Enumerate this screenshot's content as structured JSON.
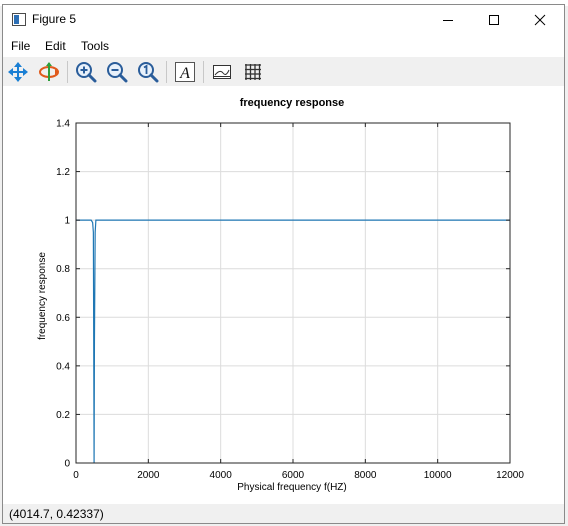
{
  "window": {
    "title": "Figure 5"
  },
  "menu": {
    "items": [
      "File",
      "Edit",
      "Tools"
    ]
  },
  "toolbar": {
    "tools": [
      "pan-icon",
      "rotate-icon",
      "zoom-in-icon",
      "zoom-out-icon",
      "zoom-reset-icon",
      "text-icon",
      "axes-icon",
      "grid-icon"
    ]
  },
  "status": {
    "coords": "(4014.7, 0.42337)"
  },
  "colors": {
    "line": "#1f77b4",
    "grid": "#dcdcdc"
  },
  "chart_data": {
    "type": "line",
    "title": "frequency response",
    "xlabel": "Physical frequency f(HZ)",
    "ylabel": "frequency response",
    "xlim": [
      0,
      12000
    ],
    "ylim": [
      0,
      1.4
    ],
    "xticks": [
      0,
      2000,
      4000,
      6000,
      8000,
      10000,
      12000
    ],
    "yticks": [
      0,
      0.2,
      0.4,
      0.6,
      0.8,
      1,
      1.2,
      1.4
    ],
    "grid": true,
    "series": [
      {
        "x": [
          0,
          420,
          460,
          480,
          490,
          500,
          510,
          530,
          550,
          12000
        ],
        "y": [
          1,
          1,
          0.99,
          0.95,
          0.5,
          0,
          0.5,
          0.95,
          1,
          1
        ]
      }
    ]
  }
}
